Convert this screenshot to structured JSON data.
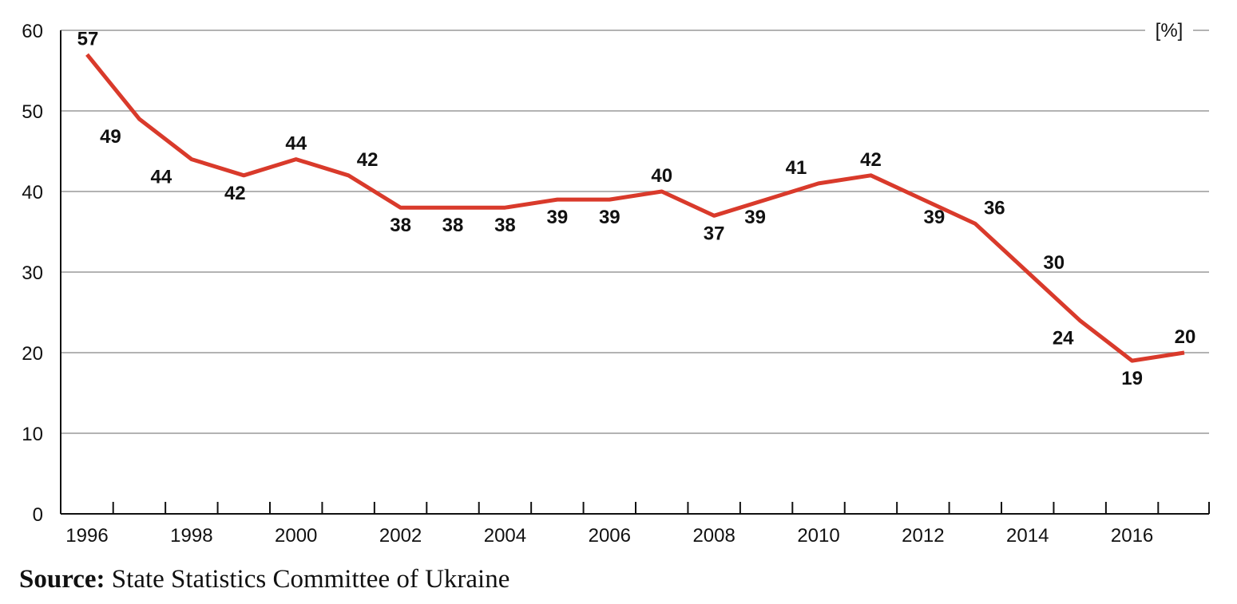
{
  "chart_data": {
    "type": "line",
    "title": "",
    "xlabel": "",
    "ylabel": "",
    "unit_label": "[%]",
    "x": [
      1996,
      1997,
      1998,
      1999,
      2000,
      2001,
      2002,
      2003,
      2004,
      2005,
      2006,
      2007,
      2008,
      2009,
      2010,
      2011,
      2012,
      2013,
      2014,
      2015,
      2016,
      2017
    ],
    "x_tick_labels": [
      "1996",
      "1998",
      "2000",
      "2002",
      "2004",
      "2006",
      "2008",
      "2010",
      "2012",
      "2014",
      "2016"
    ],
    "y_tick_labels": [
      "0",
      "10",
      "20",
      "30",
      "40",
      "50",
      "60"
    ],
    "ylim": [
      0,
      60
    ],
    "grid": true,
    "series": [
      {
        "values": [
          57,
          49,
          44,
          42,
          44,
          42,
          38,
          38,
          38,
          39,
          39,
          40,
          37,
          39,
          41,
          42,
          39,
          36,
          30,
          24,
          19,
          20
        ],
        "data_labels": [
          "57",
          "49",
          "44",
          "42",
          "44",
          "42",
          "38",
          "38",
          "38",
          "39",
          "39",
          "40",
          "37",
          "39",
          "41",
          "42",
          "39",
          "36",
          "30",
          "24",
          "19",
          "20"
        ],
        "color": "#d93a2b"
      }
    ]
  },
  "source": {
    "prefix": "Source:",
    "text": " State Statistics Committee of Ukraine"
  },
  "colors": {
    "line": "#d93a2b",
    "grid": "#9a9a9a",
    "axis": "#111111",
    "text": "#111111"
  }
}
